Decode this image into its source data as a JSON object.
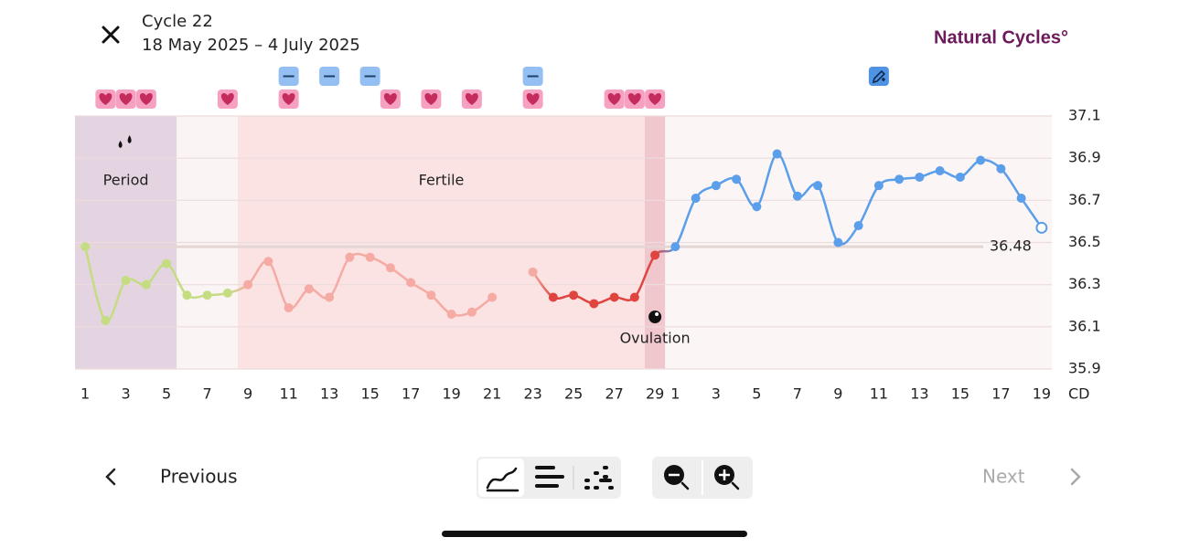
{
  "header": {
    "title": "Cycle 22",
    "dates": "18 May 2025 – 4 July 2025",
    "brand": "Natural Cycles°"
  },
  "chart_data": {
    "type": "line",
    "categories": [
      1,
      null,
      3,
      null,
      5,
      null,
      7,
      null,
      9,
      null,
      11,
      null,
      13,
      null,
      15,
      null,
      17,
      null,
      19,
      null,
      21,
      null,
      23,
      null,
      25,
      null,
      27,
      null,
      29,
      1,
      null,
      3,
      null,
      5,
      null,
      7,
      null,
      9,
      null,
      11,
      null,
      13,
      null,
      15,
      null,
      17,
      null,
      19
    ],
    "values": [
      36.48,
      36.13,
      36.32,
      36.3,
      36.4,
      36.25,
      36.25,
      36.26,
      36.3,
      36.41,
      36.19,
      36.28,
      36.24,
      36.43,
      36.43,
      36.38,
      36.31,
      36.25,
      36.16,
      36.17,
      36.24,
      null,
      36.36,
      36.24,
      36.25,
      36.21,
      36.24,
      36.24,
      36.44,
      36.48,
      36.71,
      36.77,
      36.8,
      36.67,
      36.92,
      36.72,
      36.77,
      36.5,
      36.58,
      36.77,
      36.8,
      36.81,
      36.84,
      36.81,
      36.89,
      36.85,
      36.71,
      36.57
    ],
    "x_label": "CD",
    "ylim": [
      35.9,
      37.1
    ],
    "yticks": [
      35.9,
      36.1,
      36.3,
      36.5,
      36.7,
      36.9,
      37.1
    ],
    "grid": true,
    "coverline": 36.48,
    "hollow_last": true,
    "phases": [
      {
        "from": 0,
        "to": 7,
        "color": "#c5dd82"
      },
      {
        "from": 8,
        "to": 22,
        "color": "#f5aaa4"
      },
      {
        "from": 23,
        "to": 28,
        "color": "#e0443f"
      },
      {
        "from": 29,
        "to": 47,
        "color": "#5b9ee9"
      }
    ],
    "bands": [
      {
        "label": "Period",
        "from": 0,
        "to": 4,
        "color": "#e4d3e1"
      },
      {
        "from": 5,
        "to": 7,
        "color": "#faf4f4"
      },
      {
        "label": "Fertile",
        "from": 8,
        "to": 27,
        "color": "#fbe3e3"
      },
      {
        "label": "Ovulation",
        "from": 28,
        "to": 28,
        "color": "#f1c7ce"
      },
      {
        "from": 29,
        "to": 47,
        "color": "#fbf5f5"
      }
    ],
    "hearts": [
      1,
      2,
      3,
      7,
      10,
      15,
      17,
      19,
      22,
      26,
      27,
      28
    ],
    "tests": [
      10,
      12,
      14,
      22
    ],
    "notes": [
      39
    ]
  },
  "footer": {
    "previous": "Previous",
    "next": "Next"
  }
}
